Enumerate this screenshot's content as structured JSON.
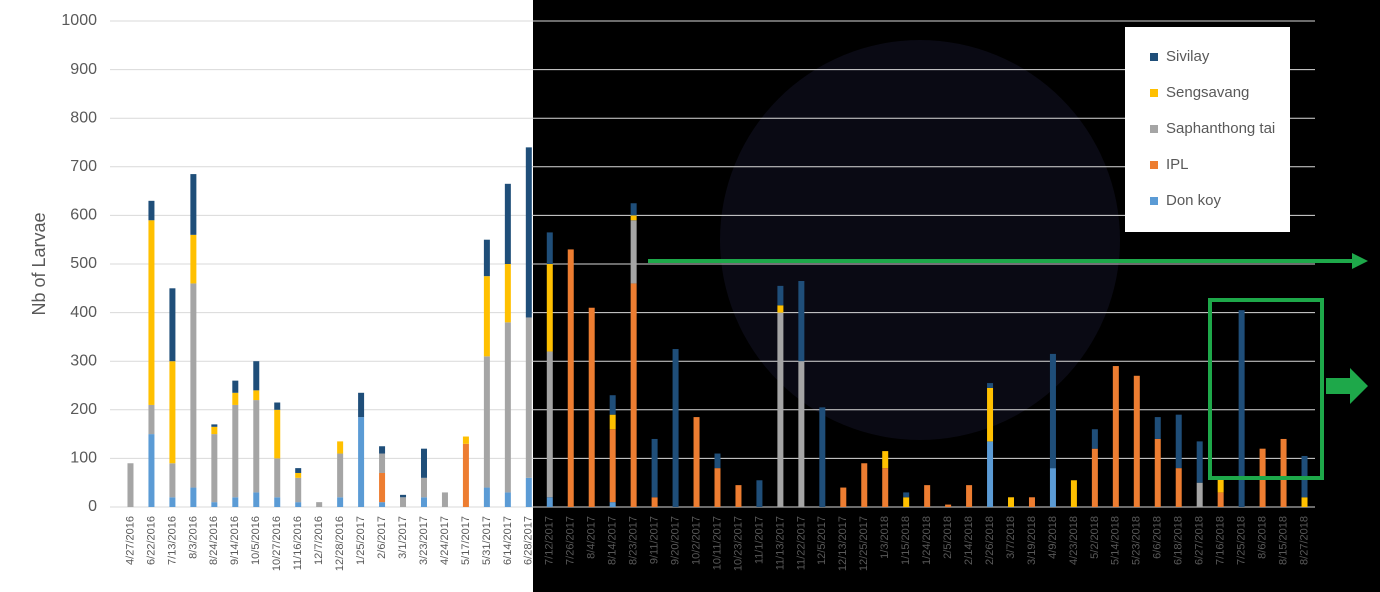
{
  "chart_data": {
    "type": "stacked_bar",
    "ylabel": "Nb of Larvae",
    "categories": [
      "4/27/2016",
      "6/22/2016",
      "7/13/2016",
      "8/3/2016",
      "8/24/2016",
      "9/14/2016",
      "10/5/2016",
      "10/27/2016",
      "11/16/2016",
      "12/7/2016",
      "12/28/2016",
      "1/25/2017",
      "2/6/2017",
      "3/1/2017",
      "3/23/2017",
      "4/24/2017",
      "5/17/2017",
      "5/31/2017",
      "6/14/2017",
      "6/28/2017",
      "7/12/2017",
      "7/26/2017",
      "8/4/2017",
      "8/14/2017",
      "8/23/2017",
      "9/11/2017",
      "9/20/2017",
      "10/2/2017",
      "10/11/2017",
      "10/23/2017",
      "11/1/2017",
      "11/13/2017",
      "11/22/2017",
      "12/5/2017",
      "12/13/2017",
      "12/25/2017",
      "1/3/2018",
      "1/15/2018",
      "1/24/2018",
      "2/5/2018",
      "2/14/2018",
      "2/26/2018",
      "3/7/2018",
      "3/19/2018",
      "4/9/2018",
      "4/23/2018",
      "5/2/2018",
      "5/14/2018",
      "5/23/2018",
      "6/6/2018",
      "6/18/2018",
      "6/27/2018",
      "7/16/2018",
      "7/25/2018",
      "8/6/2018",
      "8/15/2018",
      "8/27/2018"
    ],
    "series": [
      {
        "name": "Don koy",
        "color": "#5b9bd5",
        "values": [
          0,
          150,
          20,
          40,
          10,
          20,
          30,
          20,
          10,
          0,
          20,
          185,
          10,
          0,
          20,
          0,
          0,
          40,
          30,
          60,
          20,
          0,
          0,
          10,
          0,
          0,
          0,
          0,
          0,
          0,
          0,
          0,
          0,
          0,
          0,
          0,
          0,
          0,
          0,
          0,
          0,
          135,
          0,
          0,
          80,
          0,
          0,
          0,
          0,
          0,
          0,
          0,
          0,
          0,
          0,
          0,
          0
        ]
      },
      {
        "name": "IPL",
        "color": "#ed7d31",
        "values": [
          0,
          0,
          0,
          0,
          0,
          0,
          0,
          0,
          0,
          0,
          0,
          0,
          60,
          0,
          0,
          0,
          130,
          0,
          0,
          0,
          0,
          530,
          410,
          150,
          460,
          20,
          0,
          185,
          80,
          45,
          0,
          0,
          0,
          0,
          40,
          90,
          80,
          0,
          45,
          5,
          45,
          0,
          0,
          20,
          0,
          0,
          120,
          290,
          270,
          140,
          80,
          0,
          30,
          0,
          120,
          140,
          0
        ]
      },
      {
        "name": "Saphanthong tai",
        "color": "#a5a5a5",
        "values": [
          90,
          60,
          70,
          420,
          140,
          190,
          190,
          80,
          50,
          10,
          90,
          0,
          40,
          20,
          40,
          30,
          0,
          270,
          350,
          330,
          300,
          0,
          0,
          0,
          130,
          0,
          0,
          0,
          0,
          0,
          0,
          400,
          300,
          0,
          0,
          0,
          0,
          0,
          0,
          0,
          0,
          0,
          0,
          0,
          0,
          0,
          0,
          0,
          0,
          0,
          0,
          50,
          0,
          0,
          0,
          0,
          0
        ]
      },
      {
        "name": "Sengsavang",
        "color": "#ffc000",
        "values": [
          0,
          380,
          210,
          100,
          15,
          25,
          20,
          100,
          10,
          0,
          25,
          0,
          0,
          0,
          0,
          0,
          15,
          165,
          120,
          0,
          180,
          0,
          0,
          30,
          10,
          0,
          0,
          0,
          0,
          0,
          0,
          15,
          0,
          0,
          0,
          0,
          35,
          20,
          0,
          0,
          0,
          110,
          20,
          0,
          0,
          55,
          0,
          0,
          0,
          0,
          0,
          0,
          30,
          0,
          0,
          0,
          20
        ]
      },
      {
        "name": "Sivilay",
        "color": "#1f4e79",
        "values": [
          0,
          40,
          150,
          125,
          5,
          25,
          60,
          15,
          10,
          0,
          0,
          50,
          15,
          5,
          60,
          0,
          0,
          75,
          165,
          350,
          65,
          0,
          0,
          40,
          25,
          120,
          325,
          0,
          30,
          0,
          55,
          40,
          165,
          205,
          0,
          0,
          0,
          10,
          0,
          0,
          0,
          10,
          0,
          0,
          235,
          0,
          40,
          0,
          0,
          45,
          110,
          85,
          0,
          405,
          0,
          0,
          85
        ]
      }
    ],
    "ylim": [
      0,
      1000
    ],
    "yticks": [
      0,
      100,
      200,
      300,
      400,
      500,
      600,
      700,
      800,
      900,
      1000
    ],
    "grid": true
  }
}
